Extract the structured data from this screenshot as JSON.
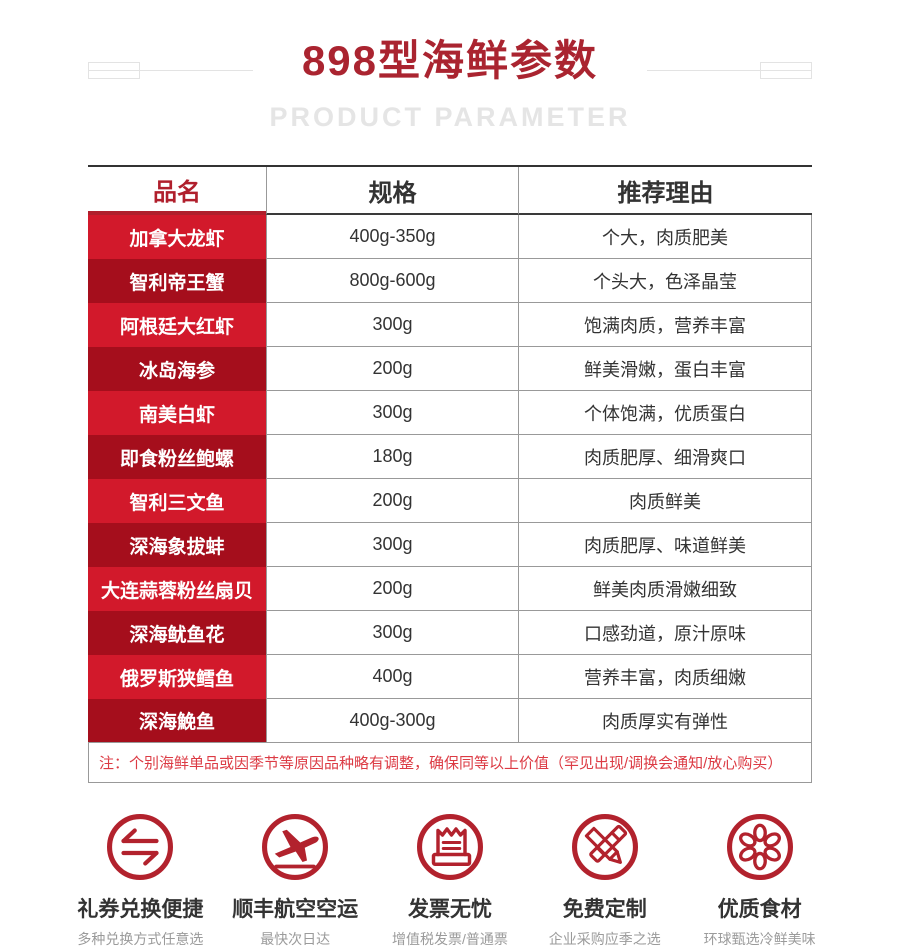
{
  "colors": {
    "title_red": "#aa2430",
    "header_red": "#b01f2c",
    "row_bright": "#d2192b",
    "row_dark": "#a50e1c",
    "note_red": "#dc3b44",
    "icon_red": "#b2222d",
    "border_gray": "#999999",
    "subtitle_gray": "#e5e5e5",
    "deco_gray": "#e3e3e3"
  },
  "header": {
    "title": "898型海鲜参数",
    "subtitle": "PRODUCT PARAMETER"
  },
  "table": {
    "columns": [
      "品名",
      "规格",
      "推荐理由"
    ],
    "rows": [
      {
        "name": "加拿大龙虾",
        "spec": "400g-350g",
        "reason": "个大，肉质肥美"
      },
      {
        "name": "智利帝王蟹",
        "spec": "800g-600g",
        "reason": "个头大，色泽晶莹"
      },
      {
        "name": "阿根廷大红虾",
        "spec": "300g",
        "reason": "饱满肉质，营养丰富"
      },
      {
        "name": "冰岛海参",
        "spec": "200g",
        "reason": "鲜美滑嫩，蛋白丰富"
      },
      {
        "name": "南美白虾",
        "spec": "300g",
        "reason": "个体饱满，优质蛋白"
      },
      {
        "name": "即食粉丝鲍螺",
        "spec": "180g",
        "reason": "肉质肥厚、细滑爽口"
      },
      {
        "name": "智利三文鱼",
        "spec": "200g",
        "reason": "肉质鲜美"
      },
      {
        "name": "深海象拔蚌",
        "spec": "300g",
        "reason": "肉质肥厚、味道鲜美"
      },
      {
        "name": "大连蒜蓉粉丝扇贝",
        "spec": "200g",
        "reason": "鲜美肉质滑嫩细致"
      },
      {
        "name": "深海鱿鱼花",
        "spec": "300g",
        "reason": "口感劲道，原汁原味"
      },
      {
        "name": "俄罗斯狭鳕鱼",
        "spec": "400g",
        "reason": "营养丰富，肉质细嫩"
      },
      {
        "name": "深海鮸鱼",
        "spec": "400g-300g",
        "reason": "肉质厚实有弹性"
      }
    ],
    "note": "注：个别海鲜单品或因季节等原因品种略有调整，确保同等以上价值（罕见出现/调换会通知/放心购买）"
  },
  "footer": {
    "items": [
      {
        "icon": "exchange-icon",
        "title": "礼券兑换便捷",
        "subtitle": "多种兑换方式任意选"
      },
      {
        "icon": "airplane-icon",
        "title": "顺丰航空空运",
        "subtitle": "最快次日达"
      },
      {
        "icon": "invoice-icon",
        "title": "发票无忧",
        "subtitle": "增值税发票/普通票"
      },
      {
        "icon": "pencil-icon",
        "title": "免费定制",
        "subtitle": "企业采购应季之选"
      },
      {
        "icon": "ingredient-icon",
        "title": "优质食材",
        "subtitle": "环球甄选冷鲜美味"
      }
    ]
  }
}
